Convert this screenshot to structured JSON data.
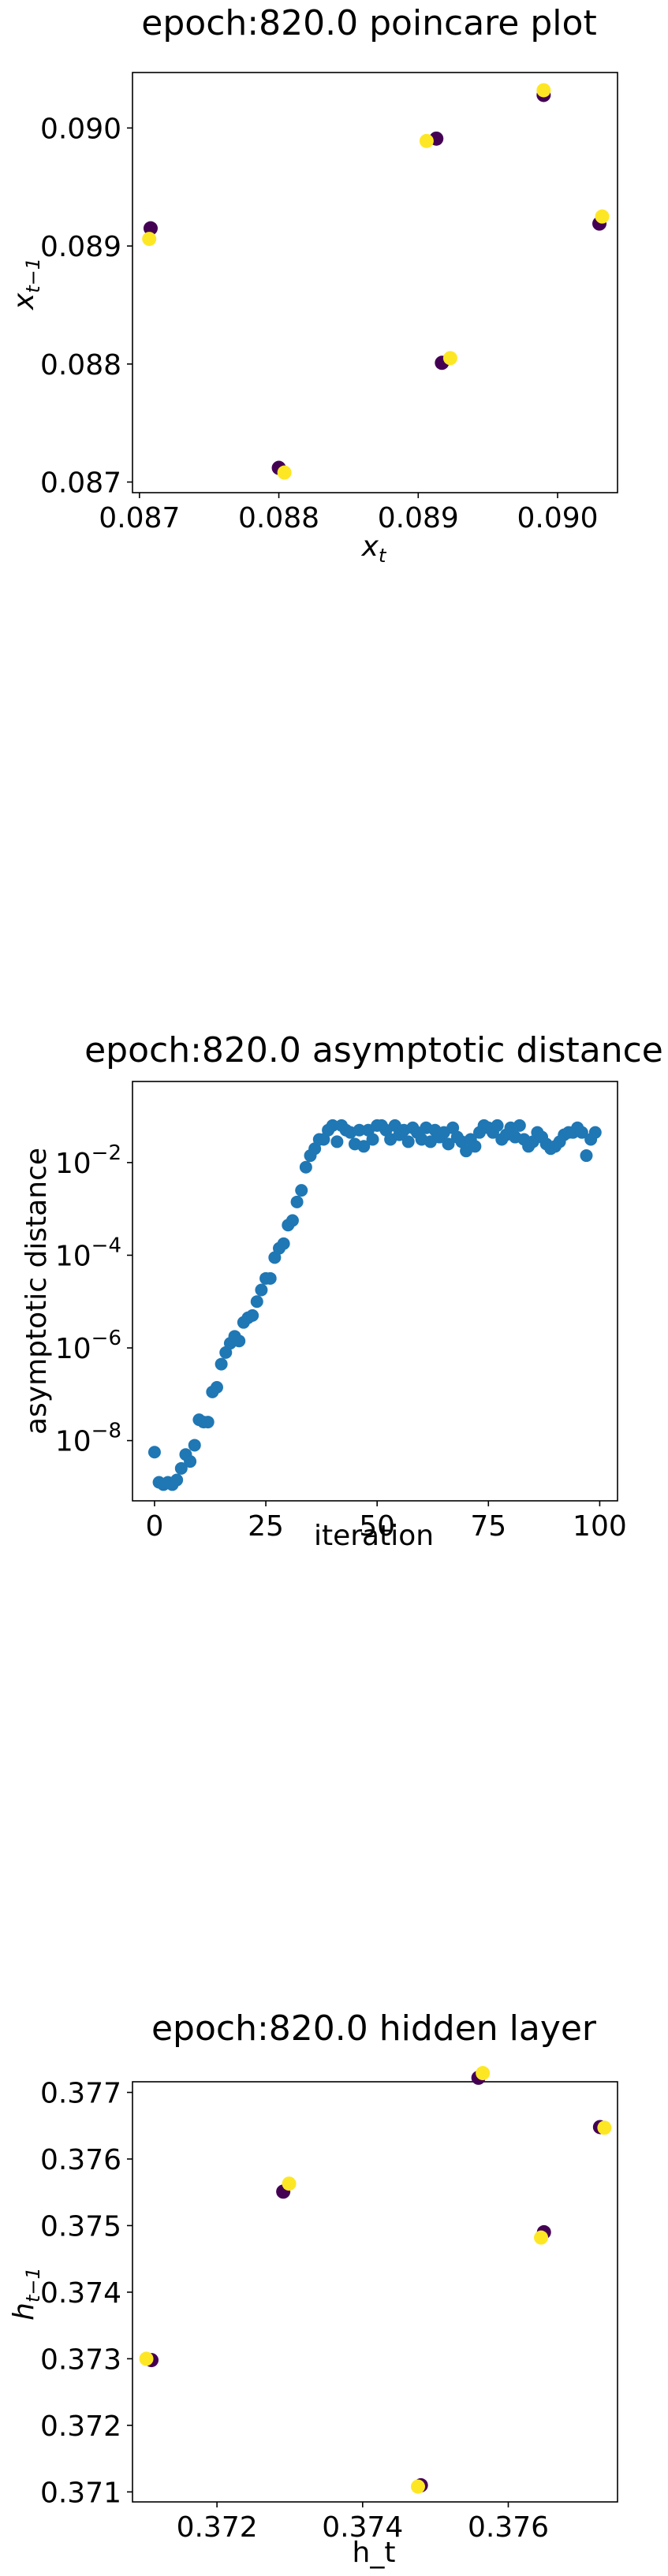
{
  "chart_data": [
    {
      "type": "scatter",
      "title": "epoch:820.0 poincare plot",
      "xlabel": "x_t",
      "xlabel_sub": "t",
      "ylabel": "x_{t-1}",
      "ylabel_sub": "t−1",
      "xlim": [
        0.08695,
        0.09043
      ],
      "ylim": [
        0.08691,
        0.09047
      ],
      "xticks": [
        0.087,
        0.088,
        0.089,
        0.09
      ],
      "xtick_labels": [
        "0.087",
        "0.088",
        "0.089",
        "0.090"
      ],
      "yticks": [
        0.087,
        0.088,
        0.089,
        0.09
      ],
      "ytick_labels": [
        "0.087",
        "0.088",
        "0.089",
        "0.090"
      ],
      "colormap": [
        "#440154",
        "#fde725"
      ],
      "points": [
        {
          "x": 0.08708,
          "y": 0.08915,
          "c": 0
        },
        {
          "x": 0.08707,
          "y": 0.08906,
          "c": 1
        },
        {
          "x": 0.088,
          "y": 0.08712,
          "c": 0
        },
        {
          "x": 0.08804,
          "y": 0.08708,
          "c": 1
        },
        {
          "x": 0.08913,
          "y": 0.08991,
          "c": 0
        },
        {
          "x": 0.08906,
          "y": 0.08989,
          "c": 1
        },
        {
          "x": 0.08917,
          "y": 0.08801,
          "c": 0
        },
        {
          "x": 0.08923,
          "y": 0.08805,
          "c": 1
        },
        {
          "x": 0.0899,
          "y": 0.09028,
          "c": 0
        },
        {
          "x": 0.0899,
          "y": 0.09032,
          "c": 1
        },
        {
          "x": 0.0903,
          "y": 0.08919,
          "c": 0
        },
        {
          "x": 0.09032,
          "y": 0.08925,
          "c": 1
        }
      ]
    },
    {
      "type": "scatter",
      "title": "epoch:820.0 asymptotic distance",
      "xlabel": "iteration",
      "ylabel": "asymptotic distance",
      "yscale": "log",
      "xlim": [
        -4.95,
        104
      ],
      "ylog_lim": [
        -9.3,
        -0.25
      ],
      "xticks": [
        0,
        25,
        50,
        75,
        100
      ],
      "xtick_labels": [
        "0",
        "25",
        "50",
        "75",
        "100"
      ],
      "ytick_exponents": [
        -8,
        -6,
        -4,
        -2
      ],
      "ytick_base": "10",
      "color": "#1f77b4",
      "x": [
        0,
        1,
        2,
        3,
        4,
        5,
        6,
        7,
        8,
        9,
        10,
        11,
        12,
        13,
        14,
        15,
        16,
        17,
        18,
        19,
        20,
        21,
        22,
        23,
        24,
        25,
        26,
        27,
        28,
        29,
        30,
        31,
        32,
        33,
        34,
        35,
        36,
        37,
        38,
        39,
        40,
        41,
        42,
        43,
        44,
        45,
        46,
        47,
        48,
        49,
        50,
        51,
        52,
        53,
        54,
        55,
        56,
        57,
        58,
        59,
        60,
        61,
        62,
        63,
        64,
        65,
        66,
        67,
        68,
        69,
        70,
        71,
        72,
        73,
        74,
        75,
        76,
        77,
        78,
        79,
        80,
        81,
        82,
        83,
        84,
        85,
        86,
        87,
        88,
        89,
        90,
        91,
        92,
        93,
        94,
        95,
        96,
        97,
        98,
        99
      ],
      "log10_y": [
        -8.25,
        -8.9,
        -8.95,
        -8.9,
        -8.95,
        -8.85,
        -8.6,
        -8.3,
        -8.45,
        -8.1,
        -7.55,
        -7.6,
        -7.6,
        -6.95,
        -6.85,
        -6.35,
        -6.1,
        -5.9,
        -5.75,
        -5.85,
        -5.45,
        -5.35,
        -5.3,
        -5.0,
        -4.75,
        -4.5,
        -4.5,
        -4.05,
        -3.85,
        -3.75,
        -3.35,
        -3.25,
        -2.85,
        -2.6,
        -2.1,
        -1.85,
        -1.7,
        -1.5,
        -1.5,
        -1.3,
        -1.2,
        -1.55,
        -1.2,
        -1.3,
        -1.35,
        -1.6,
        -1.3,
        -1.65,
        -1.3,
        -1.5,
        -1.2,
        -1.2,
        -1.3,
        -1.5,
        -1.2,
        -1.4,
        -1.3,
        -1.55,
        -1.25,
        -1.35,
        -1.5,
        -1.25,
        -1.55,
        -1.3,
        -1.45,
        -1.35,
        -1.6,
        -1.25,
        -1.45,
        -1.55,
        -1.75,
        -1.5,
        -1.65,
        -1.35,
        -1.2,
        -1.25,
        -1.35,
        -1.2,
        -1.5,
        -1.4,
        -1.25,
        -1.45,
        -1.2,
        -1.5,
        -1.65,
        -1.55,
        -1.35,
        -1.45,
        -1.6,
        -1.7,
        -1.65,
        -1.55,
        -1.4,
        -1.35,
        -1.35,
        -1.25,
        -1.35,
        -1.85,
        -1.5,
        -1.35
      ]
    },
    {
      "type": "scatter",
      "title": "epoch:820.0 hidden layer",
      "xlabel": "h_t",
      "ylabel": "h_{t-1}",
      "ylabel_sub": "t−1",
      "xlim": [
        0.37084,
        0.3775
      ],
      "ylim": [
        0.37085,
        0.37716
      ],
      "xticks": [
        0.372,
        0.374,
        0.376
      ],
      "xtick_labels": [
        "0.372",
        "0.374",
        "0.376"
      ],
      "yticks": [
        0.371,
        0.372,
        0.373,
        0.374,
        0.375,
        0.376,
        0.377
      ],
      "ytick_labels": [
        "0.371",
        "0.372",
        "0.373",
        "0.374",
        "0.375",
        "0.376",
        "0.377"
      ],
      "colormap": [
        "#440154",
        "#fde725"
      ],
      "points": [
        {
          "x": 0.3711,
          "y": 0.37298,
          "c": 0
        },
        {
          "x": 0.37103,
          "y": 0.373,
          "c": 1
        },
        {
          "x": 0.37291,
          "y": 0.37551,
          "c": 0
        },
        {
          "x": 0.37299,
          "y": 0.37563,
          "c": 1
        },
        {
          "x": 0.3748,
          "y": 0.3711,
          "c": 0
        },
        {
          "x": 0.37476,
          "y": 0.37108,
          "c": 1
        },
        {
          "x": 0.37559,
          "y": 0.37722,
          "c": 0
        },
        {
          "x": 0.37565,
          "y": 0.37729,
          "c": 1
        },
        {
          "x": 0.37649,
          "y": 0.3749,
          "c": 0
        },
        {
          "x": 0.37645,
          "y": 0.37482,
          "c": 1
        },
        {
          "x": 0.37726,
          "y": 0.37648,
          "c": 0
        },
        {
          "x": 0.37732,
          "y": 0.37647,
          "c": 1
        }
      ]
    }
  ]
}
